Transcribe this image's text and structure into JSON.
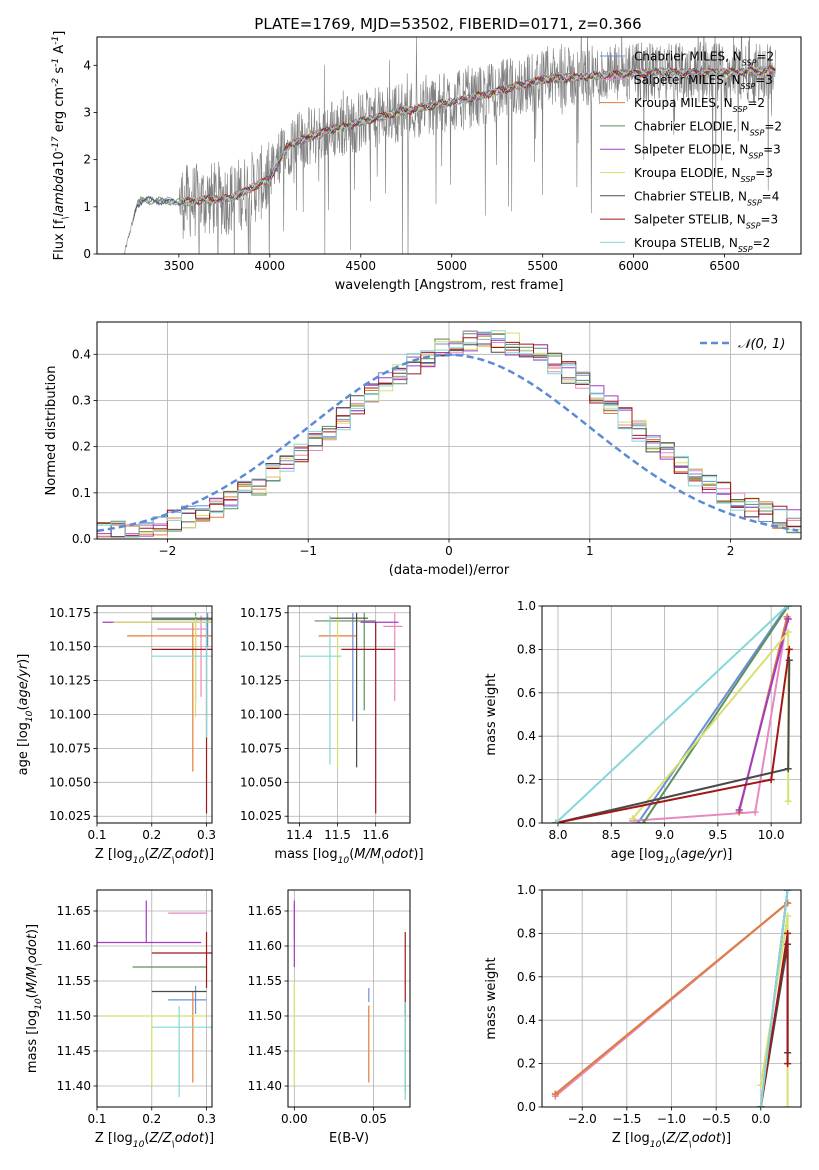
{
  "title": "PLATE=1769, MJD=53502, FIBERID=0171, z=0.366",
  "model_names": [
    "Chabrier MILES",
    "Salpeter MILES",
    "Kroupa MILES",
    "Chabrier ELODIE",
    "Salpeter ELODIE",
    "Kroupa ELODIE",
    "Chabrier STELIB",
    "Salpeter STELIB",
    "Kroupa STELIB"
  ],
  "model_colors": [
    "#6a8fd8",
    "#e887c0",
    "#e07e3b",
    "#5e8f5e",
    "#a23cc4",
    "#d8e070",
    "#4a4a4a",
    "#a01818",
    "#84d8d8"
  ],
  "chart_data": [
    {
      "id": "spectrum",
      "type": "line",
      "xlabel": "wavelength [Angstrom, rest frame]",
      "ylabel": "Flux [f$_\\lambda$10$^{-17}$ erg cm$^{-2}$ s$^{-1}$ A$^{-1}$]",
      "xlim": [
        3050,
        6920
      ],
      "ylim": [
        0,
        4.6
      ],
      "xticks": [
        3500,
        4000,
        4500,
        5000,
        5500,
        6000,
        6500
      ],
      "yticks": [
        0,
        1,
        2,
        3,
        4
      ],
      "legend_location": "top-right",
      "legend_entries": [
        {
          "model": "Chabrier MILES",
          "nssp": "2"
        },
        {
          "model": "Salpeter MILES",
          "nssp": "3"
        },
        {
          "model": "Kroupa MILES",
          "nssp": "2"
        },
        {
          "model": "Chabrier ELODIE",
          "nssp": "2"
        },
        {
          "model": "Salpeter ELODIE",
          "nssp": "3"
        },
        {
          "model": "Kroupa ELODIE",
          "nssp": "3"
        },
        {
          "model": "Chabrier STELIB",
          "nssp": "4"
        },
        {
          "model": "Salpeter STELIB",
          "nssp": "3"
        },
        {
          "model": "Kroupa STELIB",
          "nssp": "2"
        }
      ],
      "nssp_prefix": "N",
      "nssp_sub": "SSP",
      "data_color": "#808080",
      "data_x_range": [
        3200,
        6780
      ],
      "continuum": {
        "x": [
          3200,
          3270,
          3300,
          3500,
          3800,
          4000,
          4100,
          4300,
          4500,
          4700,
          4900,
          5100,
          5300,
          5500,
          5700,
          5900,
          6100,
          6300,
          6500,
          6780
        ],
        "y": [
          0.0,
          1.05,
          1.15,
          1.1,
          1.2,
          1.6,
          2.3,
          2.6,
          2.8,
          3.0,
          3.15,
          3.3,
          3.5,
          3.7,
          3.75,
          3.8,
          3.85,
          3.85,
          3.85,
          3.9
        ]
      }
    },
    {
      "id": "residuals",
      "type": "histogram",
      "xlabel": "(data-model)/error",
      "ylabel": "Normed distribution",
      "xlim": [
        -2.5,
        2.5
      ],
      "ylim": [
        0,
        0.47
      ],
      "xticks": [
        -2,
        -1,
        0,
        1,
        2
      ],
      "yticks": [
        0.0,
        0.1,
        0.2,
        0.3,
        0.4
      ],
      "grid": true,
      "legend_location": "top-right",
      "legend_entries": [
        {
          "label": "𝒩(0, 1)"
        }
      ],
      "reference_curve": {
        "name": "𝒩(0, 1)",
        "mean": 0,
        "sigma": 1,
        "style": "dashed",
        "color": "#5b8bd6"
      },
      "bin_edges_range": [
        -2.5,
        2.5
      ],
      "bin_width": 0.1
    },
    {
      "id": "age-vs-Z",
      "type": "scatter",
      "xlabel": "Z [log$_{10}$($Z/Z_\\odot$)]",
      "ylabel": "age  [log$_{10}$($age/yr$)]",
      "xlim": [
        0.1,
        0.31
      ],
      "ylim": [
        10.02,
        10.18
      ],
      "xticks": [
        0.1,
        0.2,
        0.3
      ],
      "yticks": [
        10.025,
        10.05,
        10.075,
        10.1,
        10.125,
        10.15,
        10.175
      ],
      "grid": true,
      "errorbars": [
        {
          "model": "Chabrier MILES",
          "x": 0.302,
          "xerr": [
            0.095,
            0.005
          ],
          "y": 10.17,
          "yerr": [
            0.02,
            0.005
          ]
        },
        {
          "model": "Salpeter MILES",
          "x": 0.29,
          "xerr": [
            0.08,
            0.01
          ],
          "y": 10.163,
          "yerr": [
            0.05,
            0.01
          ]
        },
        {
          "model": "Kroupa MILES",
          "x": 0.275,
          "xerr": [
            0.12,
            0.035
          ],
          "y": 10.158,
          "yerr": [
            0.1,
            0.01
          ]
        },
        {
          "model": "Chabrier ELODIE",
          "x": 0.28,
          "xerr": [
            0.08,
            0.03
          ],
          "y": 10.17,
          "yerr": [
            0.06,
            0.005
          ]
        },
        {
          "model": "Salpeter ELODIE",
          "x": 0.18,
          "xerr": [
            0.07,
            0.13
          ],
          "y": 10.168,
          "yerr": [
            0.0,
            0.0
          ]
        },
        {
          "model": "Kroupa ELODIE",
          "x": 0.28,
          "xerr": [
            0.15,
            0.03
          ],
          "y": 10.168,
          "yerr": [
            0.07,
            0.005
          ]
        },
        {
          "model": "Chabrier STELIB",
          "x": 0.25,
          "xerr": [
            0.05,
            0.06
          ],
          "y": 10.171,
          "yerr": [
            0.0,
            0.0
          ]
        },
        {
          "model": "Salpeter STELIB",
          "x": 0.3,
          "xerr": [
            0.1,
            0.01
          ],
          "y": 10.148,
          "yerr": [
            0.121,
            0.02
          ]
        },
        {
          "model": "Kroupa STELIB",
          "x": 0.3,
          "xerr": [
            0.1,
            0.01
          ],
          "y": 10.143,
          "yerr": [
            0.06,
            0.027
          ]
        }
      ]
    },
    {
      "id": "age-vs-mass",
      "type": "scatter",
      "xlabel": "mass [log$_{10}$($M/M_\\odot$)]",
      "ylabel": "",
      "xlim": [
        11.37,
        11.69
      ],
      "ylim": [
        10.02,
        10.18
      ],
      "xticks": [
        11.4,
        11.5,
        11.6
      ],
      "yticks": [
        10.025,
        10.05,
        10.075,
        10.1,
        10.125,
        10.15,
        10.175
      ],
      "grid": true,
      "errorbars": [
        {
          "model": "Chabrier MILES",
          "x": 11.54,
          "xerr": [
            0.0,
            0.0
          ],
          "y": 10.165,
          "yerr": [
            0.07,
            0.01
          ]
        },
        {
          "model": "Salpeter MILES",
          "x": 11.65,
          "xerr": [
            0.03,
            0.02
          ],
          "y": 10.165,
          "yerr": [
            0.055,
            0.01
          ]
        },
        {
          "model": "Kroupa MILES",
          "x": 11.5,
          "xerr": [
            0.05,
            0.05
          ],
          "y": 10.158,
          "yerr": [
            0.0,
            0.0
          ]
        },
        {
          "model": "Chabrier ELODIE",
          "x": 11.57,
          "xerr": [
            0.13,
            0.03
          ],
          "y": 10.169,
          "yerr": [
            0.066,
            0.006
          ]
        },
        {
          "model": "Salpeter ELODIE",
          "x": 11.6,
          "xerr": [
            0.04,
            0.06
          ],
          "y": 10.168,
          "yerr": [
            0.0,
            0.0
          ]
        },
        {
          "model": "Kroupa ELODIE",
          "x": 11.5,
          "xerr": [
            0.0,
            0.0
          ],
          "y": 10.165,
          "yerr": [
            0.105,
            0.01
          ]
        },
        {
          "model": "Chabrier STELIB",
          "x": 11.55,
          "xerr": [
            0.07,
            0.03
          ],
          "y": 10.171,
          "yerr": [
            0.11,
            0.004
          ]
        },
        {
          "model": "Salpeter STELIB",
          "x": 11.6,
          "xerr": [
            0.09,
            0.05
          ],
          "y": 10.148,
          "yerr": [
            0.121,
            0.02
          ]
        },
        {
          "model": "Kroupa STELIB",
          "x": 11.48,
          "xerr": [
            0.08,
            0.03
          ],
          "y": 10.143,
          "yerr": [
            0.08,
            0.03
          ]
        }
      ]
    },
    {
      "id": "massweight-vs-age",
      "type": "line",
      "xlabel": "age  [log$_{10}$($age/yr$)]",
      "ylabel": "mass weight",
      "xlim": [
        7.85,
        10.28
      ],
      "ylim": [
        0,
        1
      ],
      "xticks": [
        8.0,
        8.5,
        9.0,
        9.5,
        10.0
      ],
      "yticks": [
        0.0,
        0.2,
        0.4,
        0.6,
        0.8,
        1.0
      ],
      "grid": true,
      "series": [
        {
          "model": "Chabrier MILES",
          "x": [
            8.75,
            10.15
          ],
          "y": [
            0.0,
            1.0
          ]
        },
        {
          "model": "Salpeter MILES",
          "x": [
            8.7,
            9.85,
            10.15
          ],
          "y": [
            0.01,
            0.05,
            0.94
          ]
        },
        {
          "model": "Kroupa MILES",
          "x": [
            9.7,
            10.15
          ],
          "y": [
            0.05,
            0.95
          ]
        },
        {
          "model": "Chabrier ELODIE",
          "x": [
            8.8,
            10.16
          ],
          "y": [
            0.0,
            1.0
          ]
        },
        {
          "model": "Salpeter ELODIE",
          "x": [
            9.7,
            10.16
          ],
          "y": [
            0.06,
            0.94
          ]
        },
        {
          "model": "Kroupa ELODIE",
          "x": [
            8.7,
            10.16,
            10.16
          ],
          "y": [
            0.02,
            0.88,
            0.1
          ]
        },
        {
          "model": "Chabrier STELIB",
          "x": [
            7.98,
            10.16,
            10.17
          ],
          "y": [
            0.0,
            0.25,
            0.75
          ]
        },
        {
          "model": "Salpeter STELIB",
          "x": [
            7.98,
            10.0,
            10.17
          ],
          "y": [
            0.0,
            0.2,
            0.8
          ]
        },
        {
          "model": "Kroupa STELIB",
          "x": [
            7.98,
            10.15
          ],
          "y": [
            0.0,
            1.0
          ]
        }
      ]
    },
    {
      "id": "mass-vs-Z",
      "type": "scatter",
      "xlabel": "Z [log$_{10}$($Z/Z_\\odot$)]",
      "ylabel": "mass [log$_{10}$($M/M_\\odot$)]",
      "xlim": [
        0.1,
        0.31
      ],
      "ylim": [
        11.37,
        11.68
      ],
      "xticks": [
        0.1,
        0.2,
        0.3
      ],
      "yticks": [
        11.4,
        11.45,
        11.5,
        11.55,
        11.6,
        11.65
      ],
      "grid": true,
      "errorbars": [
        {
          "model": "Chabrier MILES",
          "x": 0.28,
          "xerr": [
            0.05,
            0.02
          ],
          "y": 11.523,
          "yerr": [
            0.02,
            0.02
          ]
        },
        {
          "model": "Salpeter MILES",
          "x": 0.28,
          "xerr": [
            0.05,
            0.02
          ],
          "y": 11.647,
          "yerr": [
            0.0,
            0.0
          ]
        },
        {
          "model": "Kroupa MILES",
          "x": 0.275,
          "xerr": [
            0.0,
            0.0
          ],
          "y": 11.495,
          "yerr": [
            0.09,
            0.04
          ]
        },
        {
          "model": "Chabrier ELODIE",
          "x": 0.25,
          "xerr": [
            0.085,
            0.05
          ],
          "y": 11.57,
          "yerr": [
            0.0,
            0.0
          ]
        },
        {
          "model": "Salpeter ELODIE",
          "x": 0.19,
          "xerr": [
            0.09,
            0.1
          ],
          "y": 11.605,
          "yerr": [
            0.0,
            0.06
          ]
        },
        {
          "model": "Kroupa ELODIE",
          "x": 0.2,
          "xerr": [
            0.09,
            0.1
          ],
          "y": 11.5,
          "yerr": [
            0.1,
            0.0
          ]
        },
        {
          "model": "Chabrier STELIB",
          "x": 0.25,
          "xerr": [
            0.05,
            0.05
          ],
          "y": 11.535,
          "yerr": [
            0.0,
            0.0
          ]
        },
        {
          "model": "Salpeter STELIB",
          "x": 0.3,
          "xerr": [
            0.1,
            0.01
          ],
          "y": 11.59,
          "yerr": [
            0.05,
            0.03
          ]
        },
        {
          "model": "Kroupa STELIB",
          "x": 0.25,
          "xerr": [
            0.05,
            0.06
          ],
          "y": 11.484,
          "yerr": [
            0.1,
            0.03
          ]
        }
      ]
    },
    {
      "id": "mass-vs-EBV",
      "type": "scatter",
      "xlabel": "E(B-V)",
      "ylabel": "",
      "xlim": [
        -0.004,
        0.073
      ],
      "ylim": [
        11.37,
        11.68
      ],
      "xticks": [
        0.0,
        0.05
      ],
      "yticks": [
        11.4,
        11.45,
        11.5,
        11.55,
        11.6,
        11.65
      ],
      "grid": true,
      "errorbars": [
        {
          "model": "Chabrier MILES",
          "x": 0.047,
          "xerr": [
            0.0,
            0.0
          ],
          "y": 11.52,
          "yerr": [
            0.0,
            0.02
          ]
        },
        {
          "model": "Salpeter MILES",
          "x": 0.0,
          "xerr": [
            0.0,
            0.0
          ],
          "y": 11.64,
          "yerr": [
            0.03,
            0.02
          ]
        },
        {
          "model": "Kroupa MILES",
          "x": 0.047,
          "xerr": [
            0.0,
            0.0
          ],
          "y": 11.49,
          "yerr": [
            0.085,
            0.025
          ]
        },
        {
          "model": "Chabrier ELODIE",
          "x": 0.07,
          "xerr": [
            0.0,
            0.0
          ],
          "y": 11.47,
          "yerr": [
            0.08,
            0.05
          ]
        },
        {
          "model": "Salpeter ELODIE",
          "x": 0.0,
          "xerr": [
            0.0,
            0.0
          ],
          "y": 11.61,
          "yerr": [
            0.04,
            0.055
          ]
        },
        {
          "model": "Kroupa ELODIE",
          "x": 0.0,
          "xerr": [
            0.0,
            0.0
          ],
          "y": 11.5,
          "yerr": [
            0.1,
            0.05
          ]
        },
        {
          "model": "Chabrier STELIB",
          "x": 0.047,
          "xerr": [
            0.0,
            0.0
          ],
          "y": 11.52,
          "yerr": [
            0.0,
            0.0
          ]
        },
        {
          "model": "Salpeter STELIB",
          "x": 0.07,
          "xerr": [
            0.0,
            0.0
          ],
          "y": 11.58,
          "yerr": [
            0.08,
            0.04
          ]
        },
        {
          "model": "Kroupa STELIB",
          "x": 0.07,
          "xerr": [
            0.0,
            0.0
          ],
          "y": 11.47,
          "yerr": [
            0.09,
            0.05
          ]
        }
      ]
    },
    {
      "id": "massweight-vs-Z",
      "type": "line",
      "xlabel": "Z [log$_{10}$($Z/Z_\\odot$)]",
      "ylabel": "mass weight",
      "xlim": [
        -2.45,
        0.45
      ],
      "ylim": [
        0,
        1
      ],
      "xticks": [
        -2.0,
        -1.5,
        -1.0,
        -0.5,
        0.0
      ],
      "yticks": [
        0.0,
        0.2,
        0.4,
        0.6,
        0.8,
        1.0
      ],
      "grid": true,
      "series": [
        {
          "model": "Chabrier MILES",
          "x": [
            -2.3,
            0.3
          ],
          "y": [
            0.06,
            0.94
          ]
        },
        {
          "model": "Salpeter MILES",
          "x": [
            -2.3,
            0.3
          ],
          "y": [
            0.05,
            0.94
          ]
        },
        {
          "model": "Kroupa MILES",
          "x": [
            -2.3,
            0.3
          ],
          "y": [
            0.06,
            0.94
          ]
        },
        {
          "model": "Chabrier ELODIE",
          "x": [
            0.0,
            0.3
          ],
          "y": [
            0.0,
            1.0
          ]
        },
        {
          "model": "Salpeter ELODIE",
          "x": [
            0.0,
            0.3
          ],
          "y": [
            0.0,
            1.0
          ]
        },
        {
          "model": "Kroupa ELODIE",
          "x": [
            0.0,
            0.3,
            0.3
          ],
          "y": [
            0.1,
            0.88,
            0.0
          ]
        },
        {
          "model": "Chabrier STELIB",
          "x": [
            0.0,
            0.3,
            0.3
          ],
          "y": [
            0.0,
            0.75,
            0.25
          ]
        },
        {
          "model": "Salpeter STELIB",
          "x": [
            0.0,
            0.3,
            0.3
          ],
          "y": [
            0.0,
            0.8,
            0.2
          ]
        },
        {
          "model": "Kroupa STELIB",
          "x": [
            0.0,
            0.3
          ],
          "y": [
            0.0,
            1.0
          ]
        }
      ]
    }
  ]
}
